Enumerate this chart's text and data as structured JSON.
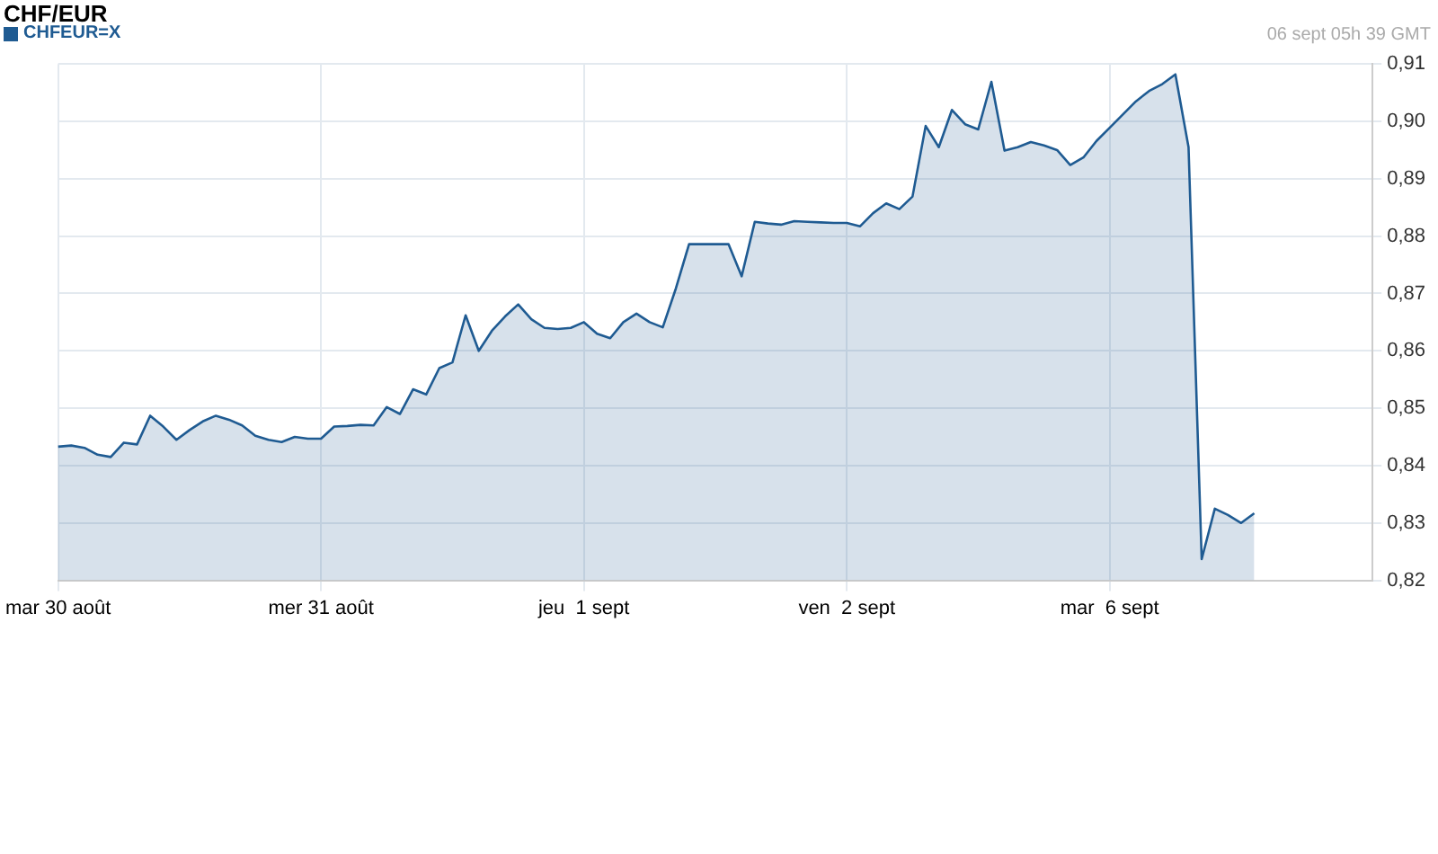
{
  "chart_data": {
    "type": "area",
    "title": "CHF/EUR",
    "annotations": [
      "06 sept 05h 39 GMT"
    ],
    "legend": "top left",
    "grid": true,
    "categories": [
      "mar 30 août",
      null,
      null,
      null,
      null,
      null,
      null,
      null,
      null,
      null,
      null,
      null,
      null,
      null,
      null,
      null,
      null,
      null,
      null,
      null,
      "mer 31 août",
      null,
      null,
      null,
      null,
      null,
      null,
      null,
      null,
      null,
      null,
      null,
      null,
      null,
      null,
      null,
      null,
      null,
      null,
      null,
      "jeu  1 sept",
      null,
      null,
      null,
      null,
      null,
      null,
      null,
      null,
      null,
      null,
      null,
      null,
      null,
      null,
      null,
      null,
      null,
      null,
      null,
      "ven  2 sept",
      null,
      null,
      null,
      null,
      null,
      null,
      null,
      null,
      null,
      null,
      null,
      null,
      null,
      null,
      null,
      null,
      null,
      null,
      null,
      "mar  6 sept",
      null,
      null,
      null,
      null,
      null,
      null,
      null,
      null,
      null,
      null,
      null,
      null,
      null,
      null,
      null,
      null,
      null,
      null,
      null,
      null
    ],
    "ylim": [
      0.82,
      0.91
    ],
    "yticks": [
      {
        "value": 0.82,
        "label": "0,82"
      },
      {
        "value": 0.83,
        "label": "0,83"
      },
      {
        "value": 0.84,
        "label": "0,84"
      },
      {
        "value": 0.85,
        "label": "0,85"
      },
      {
        "value": 0.86,
        "label": "0,86"
      },
      {
        "value": 0.87,
        "label": "0,87"
      },
      {
        "value": 0.88,
        "label": "0,88"
      },
      {
        "value": 0.89,
        "label": "0,89"
      },
      {
        "value": 0.9,
        "label": "0,90"
      },
      {
        "value": 0.91,
        "label": "0,91"
      }
    ],
    "series": [
      {
        "name": "CHFEUR=X",
        "color": "#1f5b92",
        "values": [
          0.8433,
          0.8435,
          0.8431,
          0.8419,
          0.8415,
          0.844,
          0.8437,
          0.8487,
          0.8468,
          0.8445,
          0.8462,
          0.8477,
          0.8487,
          0.848,
          0.847,
          0.8452,
          0.8445,
          0.8441,
          0.845,
          0.8447,
          0.8447,
          0.8468,
          0.8469,
          0.8471,
          0.847,
          0.8502,
          0.849,
          0.8533,
          0.8524,
          0.857,
          0.858,
          0.8662,
          0.86,
          0.8635,
          0.866,
          0.8681,
          0.8655,
          0.864,
          0.8638,
          0.864,
          0.865,
          0.863,
          0.8622,
          0.865,
          0.8665,
          0.865,
          0.8641,
          0.8709,
          0.8786,
          0.8786,
          0.8786,
          0.8786,
          0.873,
          0.8825,
          0.8822,
          0.882,
          0.8826,
          0.8825,
          0.8824,
          0.8823,
          0.8823,
          0.8817,
          0.884,
          0.8857,
          0.8847,
          0.8869,
          0.8992,
          0.8955,
          0.902,
          0.8995,
          0.8986,
          0.9069,
          0.8949,
          0.8955,
          0.8964,
          0.8958,
          0.895,
          0.8924,
          0.8937,
          0.8966,
          0.8989,
          0.9012,
          0.9035,
          0.9053,
          0.9065,
          0.9082,
          0.8955,
          0.8237,
          0.8325,
          0.8314,
          0.83,
          0.8317,
          null,
          null,
          null,
          null,
          null,
          null,
          null,
          null,
          null
        ]
      }
    ]
  }
}
